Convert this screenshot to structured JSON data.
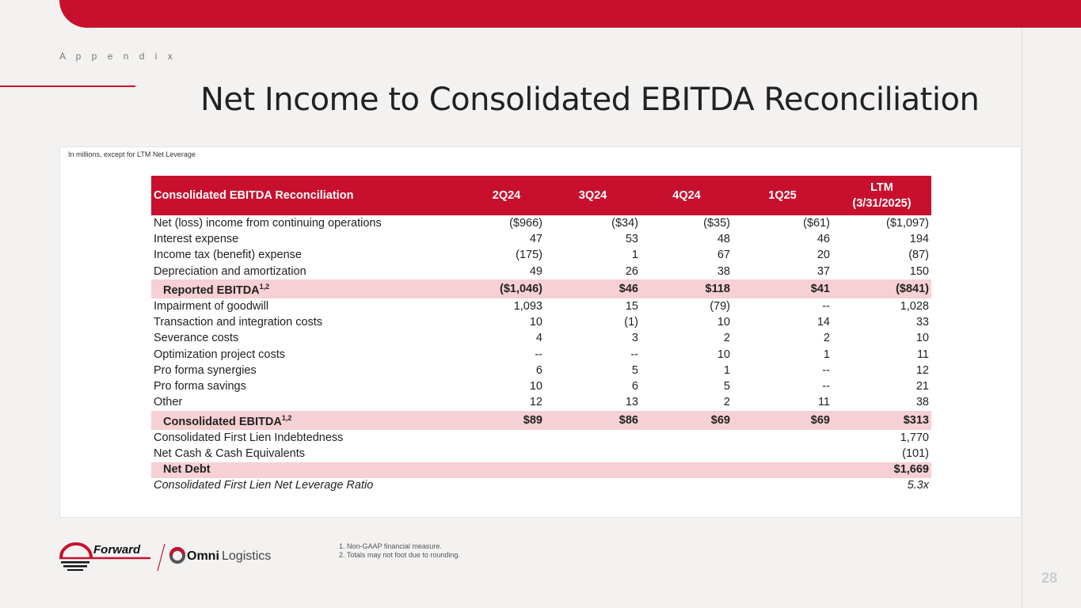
{
  "section": "A p p e n d i x",
  "title": "Net Income to Consolidated EBITDA Reconciliation",
  "note": "In millions, except for LTM Net Leverage",
  "table": {
    "headers": [
      "Consolidated EBITDA Reconciliation",
      "2Q24",
      "3Q24",
      "4Q24",
      "1Q25",
      "LTM",
      "(3/31/2025)"
    ],
    "rows": [
      {
        "label": "Net (loss) income from continuing operations",
        "values": [
          "($966)",
          "($34)",
          "($35)",
          "($61)",
          "($1,097)"
        ]
      },
      {
        "label": "Interest expense",
        "values": [
          "47",
          "53",
          "48",
          "46",
          "194"
        ]
      },
      {
        "label": "Income tax (benefit) expense",
        "values": [
          "(175)",
          "1",
          "67",
          "20",
          "(87)"
        ]
      },
      {
        "label": "Depreciation and amortization",
        "values": [
          "49",
          "26",
          "38",
          "37",
          "150"
        ]
      },
      {
        "label": "Reported EBITDA",
        "sup": "1,2",
        "highlight": true,
        "values": [
          "($1,046)",
          "$46",
          "$118",
          "$41",
          "($841)"
        ]
      },
      {
        "label": "Impairment of goodwill",
        "values": [
          "1,093",
          "15",
          "(79)",
          "--",
          "1,028"
        ]
      },
      {
        "label": "Transaction and integration costs",
        "values": [
          "10",
          "(1)",
          "10",
          "14",
          "33"
        ]
      },
      {
        "label": "Severance costs",
        "values": [
          "4",
          "3",
          "2",
          "2",
          "10"
        ]
      },
      {
        "label": "Optimization project costs",
        "values": [
          "--",
          "--",
          "10",
          "1",
          "11"
        ]
      },
      {
        "label": "Pro forma synergies",
        "values": [
          "6",
          "5",
          "1",
          "--",
          "12"
        ]
      },
      {
        "label": "Pro forma savings",
        "values": [
          "10",
          "6",
          "5",
          "--",
          "21"
        ]
      },
      {
        "label": "Other",
        "values": [
          "12",
          "13",
          "2",
          "11",
          "38"
        ]
      },
      {
        "label": "Consolidated EBITDA",
        "sup": "1,2",
        "highlight": true,
        "values": [
          "$89",
          "$86",
          "$69",
          "$69",
          "$313"
        ]
      },
      {
        "label": "Consolidated First Lien Indebtedness",
        "values": [
          "",
          "",
          "",
          "",
          "1,770"
        ]
      },
      {
        "label": "Net Cash & Cash Equivalents",
        "values": [
          "",
          "",
          "",
          "",
          "(101)"
        ]
      },
      {
        "label": "Net Debt",
        "highlight": true,
        "values": [
          "",
          "",
          "",
          "",
          "$1,669"
        ]
      },
      {
        "label": "Consolidated First Lien Net Leverage Ratio",
        "italic": true,
        "values": [
          "",
          "",
          "",
          "",
          "5.3x"
        ]
      }
    ]
  },
  "footnotes": [
    "1.  Non-GAAP financial measure.",
    "2.  Totals may not foot due to rounding."
  ],
  "logos": {
    "forward": "Forward",
    "omni_bold": "Omni",
    "omni_light": "Logistics"
  },
  "page_number": "28",
  "colors": {
    "brand_red": "#c8102e",
    "highlight": "#f6d0d4"
  }
}
